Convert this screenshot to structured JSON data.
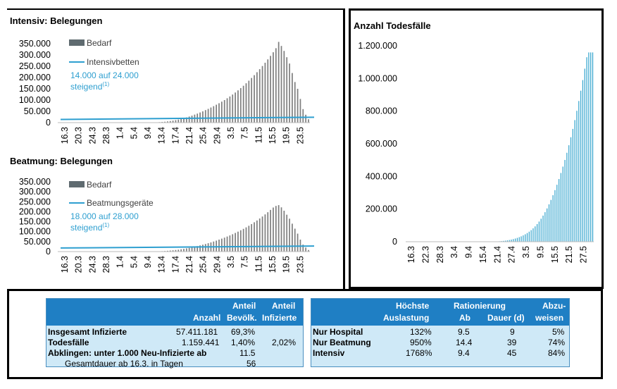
{
  "chart_data": [
    {
      "type": "bar",
      "title": "Intensiv: Belegungen",
      "ylim": [
        0,
        350000
      ],
      "yticks": [
        "350.000",
        "300.000",
        "250.000",
        "200.000",
        "150.000",
        "100.000",
        "50.000",
        "0"
      ],
      "xticks": [
        "16.3",
        "20.3",
        "24.3",
        "28.3",
        "1.4",
        "5.4",
        "9.4",
        "13.4",
        "17.4",
        "21.4",
        "25.4",
        "29.4",
        "3.5",
        "7.5",
        "11.5",
        "15.5",
        "19.5",
        "23.5"
      ],
      "series": [
        {
          "name": "Bedarf",
          "kind": "bar",
          "color": "#7f7f7f",
          "values": [
            0,
            0,
            0,
            0,
            0,
            0,
            0,
            0,
            0,
            0,
            0,
            0,
            0,
            0,
            0,
            0,
            0,
            0,
            0,
            0,
            0,
            0,
            0,
            0,
            0,
            0,
            0,
            0,
            0,
            0,
            0,
            0,
            0,
            500,
            1000,
            1500,
            2200,
            3000,
            4000,
            5500,
            7000,
            9000,
            11000,
            13500,
            16500,
            19500,
            23000,
            27000,
            31000,
            35500,
            40000,
            45000,
            50000,
            55500,
            61000,
            67000,
            73000,
            79500,
            86000,
            93000,
            100000,
            108000,
            116000,
            124500,
            133500,
            143000,
            153000,
            163500,
            174500,
            186000,
            198000,
            210500,
            223500,
            237000,
            251000,
            265500,
            280500,
            296000,
            312000,
            330000,
            358000,
            340000,
            318000,
            290000,
            262000,
            220000,
            180000,
            150000,
            105000,
            60000,
            35000,
            15000
          ]
        },
        {
          "name": "Intensivbetten",
          "kind": "line",
          "color": "#2e9fd0",
          "from": 14000,
          "to": 24000
        }
      ],
      "annotation": [
        "14.000 auf 24.000",
        "steigend",
        "(1)"
      ]
    },
    {
      "type": "bar",
      "title": "Beatmung: Belegungen",
      "ylim": [
        0,
        350000
      ],
      "yticks": [
        "350.000",
        "300.000",
        "250.000",
        "200.000",
        "150.000",
        "100.000",
        "50.000",
        "0"
      ],
      "xticks": [
        "16.3",
        "20.3",
        "24.3",
        "28.3",
        "1.4",
        "5.4",
        "9.4",
        "13.4",
        "17.4",
        "21.4",
        "25.4",
        "29.4",
        "3.5",
        "7.5",
        "11.5",
        "15.5",
        "19.5",
        "23.5"
      ],
      "series": [
        {
          "name": "Bedarf",
          "kind": "bar",
          "color": "#7f7f7f",
          "values": [
            0,
            0,
            0,
            0,
            0,
            0,
            0,
            0,
            0,
            0,
            0,
            0,
            0,
            0,
            0,
            0,
            0,
            0,
            0,
            0,
            0,
            0,
            0,
            0,
            0,
            0,
            0,
            0,
            0,
            0,
            0,
            0,
            0,
            300,
            700,
            1100,
            1600,
            2200,
            3000,
            4000,
            5200,
            6500,
            8000,
            9500,
            11500,
            13500,
            16000,
            18500,
            21500,
            24500,
            27500,
            31000,
            34500,
            38000,
            42000,
            46000,
            50500,
            55000,
            60000,
            65000,
            70000,
            75500,
            81000,
            87000,
            93500,
            100000,
            107000,
            114000,
            121500,
            129500,
            138000,
            147000,
            156000,
            166000,
            176000,
            186500,
            197500,
            209000,
            221000,
            229000,
            233000,
            222000,
            205000,
            185000,
            165000,
            140000,
            115000,
            90000,
            60000,
            35000,
            20000,
            8000
          ]
        },
        {
          "name": "Beatmungsgeräte",
          "kind": "line",
          "color": "#2e9fd0",
          "from": 18000,
          "to": 28000
        }
      ],
      "annotation": [
        "18.000 auf 28.000",
        "steigend",
        "(1)"
      ]
    },
    {
      "type": "bar",
      "title": "Anzahl Todesfälle",
      "ylim": [
        0,
        1200000
      ],
      "yticks": [
        "1.200.000",
        "1.000.000",
        "800.000",
        "600.000",
        "400.000",
        "200.000",
        "0"
      ],
      "xticks": [
        "16.3",
        "22.3",
        "28.3",
        "3.4",
        "9.4",
        "15.4",
        "21.4",
        "27.4",
        "3.5",
        "9.5",
        "15.5",
        "21.5",
        "27.5"
      ],
      "series": [
        {
          "name": "Todesfälle",
          "kind": "bar",
          "color": "#3aa7cf",
          "values": [
            0,
            0,
            0,
            0,
            0,
            0,
            0,
            0,
            0,
            0,
            0,
            0,
            0,
            0,
            0,
            0,
            0,
            0,
            0,
            0,
            0,
            0,
            0,
            0,
            0,
            0,
            0,
            0,
            0,
            0,
            0,
            0,
            0,
            0,
            0,
            0,
            0,
            0,
            0,
            0,
            0,
            200,
            500,
            900,
            1400,
            2000,
            2800,
            3800,
            5000,
            6500,
            8300,
            10500,
            13000,
            16000,
            19500,
            23500,
            28000,
            33000,
            39000,
            45500,
            53000,
            61500,
            71000,
            82000,
            94000,
            108000,
            123500,
            141000,
            160000,
            181000,
            204000,
            229000,
            256000,
            285000,
            316000,
            349000,
            384000,
            421000,
            460000,
            501000,
            545000,
            591000,
            640000,
            691000,
            745000,
            802000,
            862000,
            925000,
            990000,
            1060000,
            1130000,
            1159441,
            1159441,
            1159441
          ]
        }
      ]
    }
  ],
  "table_left": {
    "headers": {
      "anzahl": "Anzahl",
      "anteil_bev_1": "Anteil",
      "anteil_bev_2": "Bevölk.",
      "anteil_inf_1": "Anteil",
      "anteil_inf_2": "Infizierte"
    },
    "rows": [
      {
        "label": "Insgesamt Infizierte",
        "anzahl": "57.411.181",
        "anteil_bev": "69,3%",
        "anteil_inf": ""
      },
      {
        "label": "Todesfälle",
        "anzahl": "1.159.441",
        "anteil_bev": "1,40%",
        "anteil_inf": "2,02%"
      },
      {
        "label": "Abklingen: unter 1.000 Neu-Infizierte ab",
        "anzahl": "",
        "anteil_bev": "11.5",
        "anteil_inf": ""
      },
      {
        "label": "Gesamtdauer ab 16.3. in Tagen",
        "anzahl": "",
        "anteil_bev": "56",
        "anteil_inf": ""
      }
    ]
  },
  "table_right": {
    "headers": {
      "hoechste_1": "Höchste",
      "hoechste_2": "Auslastung",
      "rationierung": "Rationierung",
      "ab": "Ab",
      "dauer": "Dauer (d)",
      "abzu_1": "Abzu-",
      "abzu_2": "weisen"
    },
    "rows": [
      {
        "label": "Nur Hospital",
        "auslastung": "132%",
        "ab": "9.5",
        "dauer": "9",
        "abweisen": "5%"
      },
      {
        "label": "Nur Beatmung",
        "auslastung": "950%",
        "ab": "14.4",
        "dauer": "39",
        "abweisen": "74%"
      },
      {
        "label": "Intensiv",
        "auslastung": "1768%",
        "ab": "9.4",
        "dauer": "45",
        "abweisen": "84%"
      }
    ]
  }
}
